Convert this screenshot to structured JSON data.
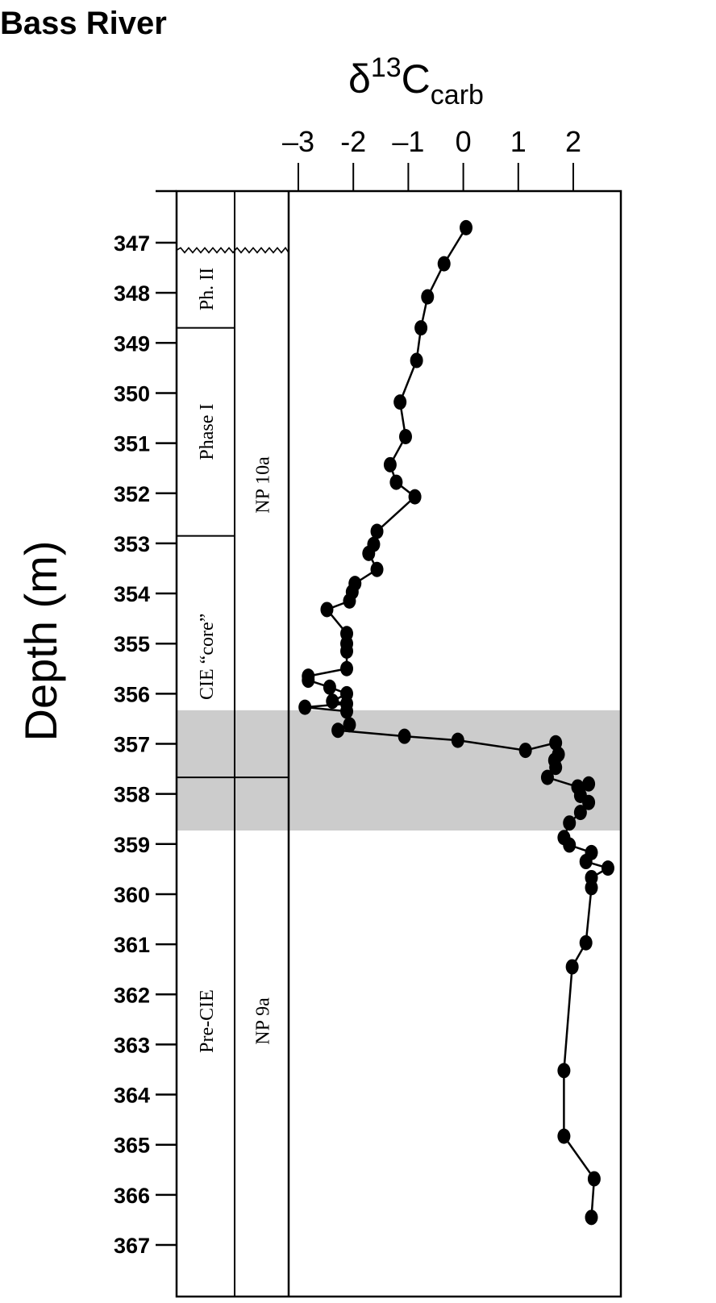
{
  "title": "Bass River",
  "chart_data": {
    "type": "line",
    "title": "Bass River",
    "xlabel": {
      "symbol": "δ",
      "superscript": "13",
      "main": "C",
      "subscript": "carb"
    },
    "ylabel": "Depth (m)",
    "xlim": [
      -3.2,
      2.8
    ],
    "ylim": [
      346,
      367
    ],
    "x_ticks": [
      "–3",
      "-2",
      "–1",
      "0",
      "1",
      "2"
    ],
    "x_tick_values": [
      -3,
      -2,
      -1,
      0,
      1,
      2
    ],
    "y_ticks": [
      "347",
      "348",
      "349",
      "350",
      "351",
      "352",
      "353",
      "354",
      "355",
      "356",
      "357",
      "358",
      "359",
      "360",
      "361",
      "362",
      "363",
      "364",
      "365",
      "366",
      "367"
    ],
    "y_tick_values": [
      347,
      348,
      349,
      350,
      351,
      352,
      353,
      354,
      355,
      356,
      357,
      358,
      359,
      360,
      361,
      362,
      363,
      364,
      365,
      366,
      367
    ],
    "y_inverted": true,
    "series": [
      {
        "values": [
          {
            "x": 0.05,
            "y": 346.7
          },
          {
            "x": -0.35,
            "y": 347.42
          },
          {
            "x": -0.65,
            "y": 348.08
          },
          {
            "x": -0.77,
            "y": 348.7
          },
          {
            "x": -0.85,
            "y": 349.35
          },
          {
            "x": -1.15,
            "y": 350.18
          },
          {
            "x": -1.05,
            "y": 350.87
          },
          {
            "x": -1.33,
            "y": 351.43
          },
          {
            "x": -1.22,
            "y": 351.78
          },
          {
            "x": -0.88,
            "y": 352.07
          },
          {
            "x": -1.57,
            "y": 352.76
          },
          {
            "x": -1.63,
            "y": 353.02
          },
          {
            "x": -1.72,
            "y": 353.2
          },
          {
            "x": -1.57,
            "y": 353.52
          },
          {
            "x": -1.97,
            "y": 353.8
          },
          {
            "x": -2.02,
            "y": 353.97
          },
          {
            "x": -2.07,
            "y": 354.15
          },
          {
            "x": -2.48,
            "y": 354.32
          },
          {
            "x": -2.12,
            "y": 354.8
          },
          {
            "x": -2.12,
            "y": 355.0
          },
          {
            "x": -2.12,
            "y": 355.15
          },
          {
            "x": -2.12,
            "y": 355.5
          },
          {
            "x": -2.82,
            "y": 355.65
          },
          {
            "x": -2.82,
            "y": 355.73
          },
          {
            "x": -2.43,
            "y": 355.87
          },
          {
            "x": -2.12,
            "y": 356.0
          },
          {
            "x": -2.38,
            "y": 356.15
          },
          {
            "x": -2.12,
            "y": 356.2
          },
          {
            "x": -2.88,
            "y": 356.27
          },
          {
            "x": -2.12,
            "y": 356.35
          },
          {
            "x": -2.07,
            "y": 356.62
          },
          {
            "x": -2.28,
            "y": 356.73
          },
          {
            "x": -1.07,
            "y": 356.85
          },
          {
            "x": -0.1,
            "y": 356.93
          },
          {
            "x": 1.13,
            "y": 357.13
          },
          {
            "x": 1.68,
            "y": 356.98
          },
          {
            "x": 1.73,
            "y": 357.21
          },
          {
            "x": 1.66,
            "y": 357.33
          },
          {
            "x": 1.68,
            "y": 357.47
          },
          {
            "x": 1.53,
            "y": 357.67
          },
          {
            "x": 2.08,
            "y": 357.86
          },
          {
            "x": 2.28,
            "y": 357.8
          },
          {
            "x": 2.13,
            "y": 358.03
          },
          {
            "x": 2.28,
            "y": 358.17
          },
          {
            "x": 2.13,
            "y": 358.37
          },
          {
            "x": 1.93,
            "y": 358.58
          },
          {
            "x": 1.83,
            "y": 358.87
          },
          {
            "x": 1.93,
            "y": 359.02
          },
          {
            "x": 2.33,
            "y": 359.17
          },
          {
            "x": 2.23,
            "y": 359.35
          },
          {
            "x": 2.63,
            "y": 359.48
          },
          {
            "x": 2.33,
            "y": 359.67
          },
          {
            "x": 2.33,
            "y": 359.87
          },
          {
            "x": 2.23,
            "y": 360.97
          },
          {
            "x": 1.98,
            "y": 361.45
          },
          {
            "x": 1.83,
            "y": 363.52
          },
          {
            "x": 1.83,
            "y": 364.83
          },
          {
            "x": 2.38,
            "y": 365.68
          },
          {
            "x": 2.33,
            "y": 366.45
          }
        ]
      }
    ],
    "shaded_band": {
      "y_from": 356.33,
      "y_to": 358.73,
      "color": "#cccccc"
    },
    "unconformity_depth": 347.15,
    "phase_boundaries": [
      {
        "y": 348.7,
        "column": "phase"
      },
      {
        "y": 352.85,
        "column": "phase"
      },
      {
        "y": 357.67,
        "column": "both"
      }
    ],
    "phase_zones": [
      {
        "label": "Ph. II",
        "y_from": 347.15,
        "y_to": 348.7
      },
      {
        "label": "Phase I",
        "y_from": 348.7,
        "y_to": 352.85
      },
      {
        "label": "CIE “core”",
        "y_from": 352.85,
        "y_to": 357.67
      },
      {
        "label": "Pre-CIE",
        "y_from": 357.67,
        "y_to": 367.4
      }
    ],
    "nanno_zones": [
      {
        "label": "NP 10a",
        "y_from": 346,
        "y_to": 357.67
      },
      {
        "label": "NP 9a",
        "y_from": 357.67,
        "y_to": 367.4
      }
    ],
    "grid": false,
    "legend": "none",
    "colors": {
      "line": "#000000",
      "marker": "#000000",
      "band": "#cccccc"
    }
  }
}
